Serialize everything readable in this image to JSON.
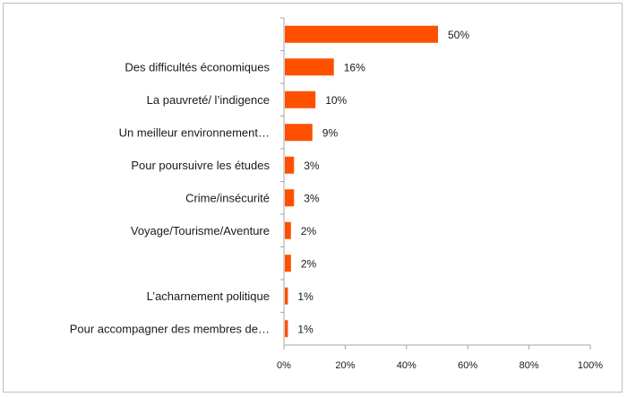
{
  "chart_data": {
    "type": "bar",
    "orientation": "horizontal",
    "categories": [
      "",
      "Des difficultés économiques",
      "La pauvreté/ l’indigence",
      "Un meilleur environnement…",
      "Pour poursuivre les études",
      "Crime/insécurité",
      "Voyage/Tourisme/Aventure",
      "",
      "L’acharnement politique",
      "Pour accompagner des membres de…"
    ],
    "values": [
      50,
      16,
      10,
      9,
      3,
      3,
      2,
      2,
      1,
      1
    ],
    "value_labels": [
      "50%",
      "16%",
      "10%",
      "9%",
      "3%",
      "3%",
      "2%",
      "2%",
      "1%",
      "1%"
    ],
    "xlim": [
      0,
      100
    ],
    "x_ticks": [
      "0%",
      "20%",
      "40%",
      "60%",
      "80%",
      "100%"
    ],
    "bar_color": "#ff5000",
    "grid": false
  }
}
